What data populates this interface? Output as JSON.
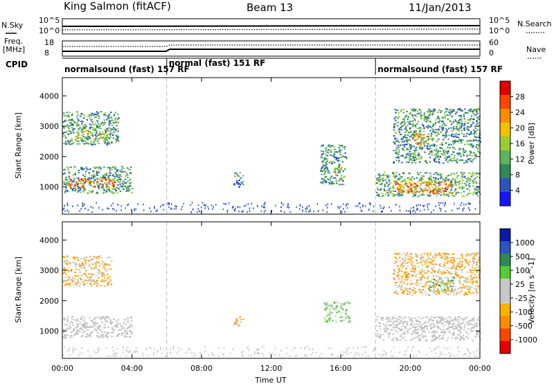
{
  "header": {
    "station": "King Salmon (fitACF)",
    "beam": "Beam 13",
    "date": "11/Jan/2013"
  },
  "top_panels": {
    "noise": {
      "left_label": "N.Sky",
      "right_label": "N.Search",
      "left_ticks": [
        "10^5",
        "10^0"
      ],
      "right_ticks": [
        "10^5",
        "10^0"
      ]
    },
    "freq": {
      "left_label_1": "Freq.",
      "left_label_2": "[MHz]",
      "right_label": "Nave",
      "left_ticks": [
        "18",
        "8"
      ],
      "right_ticks": [
        "60",
        "0"
      ]
    },
    "cpid": {
      "label": "CPID",
      "segments": [
        {
          "name": "normalsound (fast) 157 RF",
          "start_hour": 0,
          "end_hour": 6
        },
        {
          "name": "normal (fast) 151 RF",
          "start_hour": 6,
          "end_hour": 18
        },
        {
          "name": "normalsound (fast) 157 RF",
          "start_hour": 18,
          "end_hour": 24
        }
      ]
    }
  },
  "colors": {
    "power_scale": [
      "#1414ff",
      "#2a55c0",
      "#2e8b57",
      "#5fb35f",
      "#99cc33",
      "#f5c000",
      "#ff8c00",
      "#ff4500",
      "#e00000"
    ],
    "velocity_scale": [
      "#e60000",
      "#ff4400",
      "#ff8c00",
      "#ffb000",
      "#c8c8c8",
      "#c8c8c8",
      "#55cc33",
      "#2e8b57",
      "#2a55c0",
      "#0a1aa8"
    ],
    "ground_scatter": "#c0c0c0",
    "separator": "#bbbbbb"
  },
  "chart_data": [
    {
      "type": "heatmap",
      "title": "",
      "xlabel": "",
      "ylabel": "Slant Range [km]",
      "xlim": [
        0,
        24
      ],
      "ylim": [
        100,
        4600
      ],
      "y_ticks": [
        1000,
        2000,
        3000,
        4000
      ],
      "colorbar": {
        "label": "Power [dB]",
        "ticks": [
          "4",
          "8",
          "12",
          "16",
          "20",
          "24",
          "28"
        ],
        "range": [
          0,
          30
        ]
      },
      "scatter_regions": [
        {
          "hours": [
            0.0,
            4.0
          ],
          "range_km": [
            800,
            1700
          ],
          "value": 10
        },
        {
          "hours": [
            0.3,
            3.0
          ],
          "range_km": [
            1000,
            1300
          ],
          "value": 24
        },
        {
          "hours": [
            0.0,
            3.2
          ],
          "range_km": [
            2400,
            3500
          ],
          "value": 10
        },
        {
          "hours": [
            0.8,
            2.6
          ],
          "range_km": [
            2600,
            2900
          ],
          "value": 15
        },
        {
          "hours": [
            9.8,
            10.4
          ],
          "range_km": [
            1000,
            1500
          ],
          "value": 7
        },
        {
          "hours": [
            14.8,
            16.3
          ],
          "range_km": [
            1100,
            2400
          ],
          "value": 9
        },
        {
          "hours": [
            15.6,
            16.0
          ],
          "range_km": [
            1400,
            1700
          ],
          "value": 16
        },
        {
          "hours": [
            18.0,
            24.0
          ],
          "range_km": [
            700,
            1500
          ],
          "value": 11
        },
        {
          "hours": [
            19.0,
            22.5
          ],
          "range_km": [
            800,
            1200
          ],
          "value": 22
        },
        {
          "hours": [
            19.0,
            24.0
          ],
          "range_km": [
            1800,
            3600
          ],
          "value": 9
        },
        {
          "hours": [
            20.2,
            21.0
          ],
          "range_km": [
            2400,
            2800
          ],
          "value": 20
        }
      ]
    },
    {
      "type": "heatmap",
      "title": "",
      "xlabel": "Time UT",
      "ylabel": "Slant Range [km]",
      "xlim": [
        0,
        24
      ],
      "ylim": [
        100,
        4600
      ],
      "y_ticks": [
        1000,
        2000,
        3000,
        4000
      ],
      "x_ticks": [
        "00:00",
        "04:00",
        "08:00",
        "12:00",
        "16:00",
        "20:00",
        "00:00"
      ],
      "colorbar": {
        "label": "Velocity [m s^-1]",
        "ticks": [
          "-1000",
          "-500",
          "-100",
          "-25",
          "25",
          "100",
          "500",
          "1000"
        ],
        "range": [
          -1200,
          1200
        ]
      },
      "scatter_regions": [
        {
          "hours": [
            0.0,
            4.0
          ],
          "range_km": [
            800,
            1500
          ],
          "value": 0,
          "ground_scatter": true
        },
        {
          "hours": [
            0.0,
            2.8
          ],
          "range_km": [
            2500,
            3500
          ],
          "value": -300
        },
        {
          "hours": [
            9.8,
            10.4
          ],
          "range_km": [
            1200,
            1500
          ],
          "value": -300
        },
        {
          "hours": [
            15.0,
            16.5
          ],
          "range_km": [
            1300,
            2000
          ],
          "value": 100
        },
        {
          "hours": [
            18.0,
            24.0
          ],
          "range_km": [
            700,
            1500
          ],
          "value": 0,
          "ground_scatter": true
        },
        {
          "hours": [
            19.0,
            24.0
          ],
          "range_km": [
            2200,
            3600
          ],
          "value": -300
        },
        {
          "hours": [
            21.0,
            22.5
          ],
          "range_km": [
            2300,
            2800
          ],
          "value": 200
        }
      ]
    }
  ]
}
